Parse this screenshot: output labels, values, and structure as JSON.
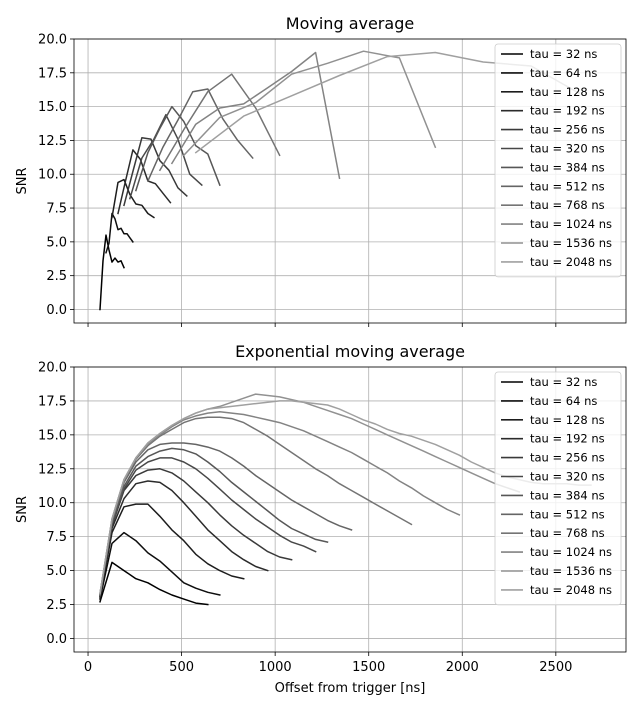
{
  "chart_data": [
    {
      "type": "line",
      "title": "Moving average",
      "xlabel": "",
      "ylabel": "SNR",
      "xlim": [
        -75,
        2875
      ],
      "ylim": [
        -1,
        20
      ],
      "xticks": [
        0,
        500,
        1000,
        1500,
        2000,
        2500
      ],
      "yticks": [
        0.0,
        2.5,
        5.0,
        7.5,
        10.0,
        12.5,
        15.0,
        17.5,
        20.0
      ],
      "ytick_labels": [
        "0.0",
        "2.5",
        "5.0",
        "7.5",
        "10.0",
        "12.5",
        "15.0",
        "17.5",
        "20.0"
      ],
      "show_xtick_labels": false,
      "grid": true,
      "legend_position": "upper right",
      "series": [
        {
          "name": "tau = 32 ns",
          "color": "#000000",
          "x": [
            64,
            80,
            96,
            112,
            128,
            144,
            160,
            176,
            192
          ],
          "y": [
            0.0,
            3.6,
            5.5,
            4.4,
            3.5,
            3.8,
            3.5,
            3.6,
            3.1
          ]
        },
        {
          "name": "tau = 64 ns",
          "color": "#0e0e0e",
          "x": [
            96,
            112,
            128,
            144,
            160,
            176,
            192,
            208,
            224,
            240
          ],
          "y": [
            4.2,
            4.9,
            7.1,
            6.7,
            5.9,
            6.0,
            5.6,
            5.6,
            5.3,
            5.0
          ]
        },
        {
          "name": "tau = 128 ns",
          "color": "#1d1d1d",
          "x": [
            128,
            160,
            192,
            224,
            256,
            288,
            320,
            352
          ],
          "y": [
            6.8,
            9.4,
            9.6,
            8.5,
            7.8,
            7.7,
            7.1,
            6.8
          ]
        },
        {
          "name": "tau = 192 ns",
          "color": "#2b2b2b",
          "x": [
            160,
            200,
            240,
            280,
            320,
            360,
            400,
            440
          ],
          "y": [
            7.1,
            9.5,
            11.8,
            11.1,
            9.5,
            9.3,
            8.6,
            7.9
          ]
        },
        {
          "name": "tau = 256 ns",
          "color": "#3a3a3a",
          "x": [
            192,
            240,
            288,
            336,
            384,
            432,
            480,
            528
          ],
          "y": [
            7.7,
            10.2,
            12.7,
            12.6,
            11.0,
            10.3,
            9.0,
            8.4
          ]
        },
        {
          "name": "tau = 320 ns",
          "color": "#484848",
          "x": [
            224,
            288,
            352,
            416,
            480,
            544,
            608
          ],
          "y": [
            8.2,
            11.2,
            12.6,
            14.4,
            12.6,
            10.0,
            9.2
          ]
        },
        {
          "name": "tau = 384 ns",
          "color": "#575757",
          "x": [
            256,
            320,
            384,
            448,
            512,
            576,
            640,
            704
          ],
          "y": [
            8.8,
            11.6,
            13.4,
            15.0,
            13.9,
            12.1,
            11.5,
            9.2
          ]
        },
        {
          "name": "tau = 512 ns",
          "color": "#656565",
          "x": [
            320,
            400,
            480,
            560,
            640,
            720,
            800,
            880
          ],
          "y": [
            9.5,
            12.0,
            14.0,
            16.1,
            16.3,
            14.1,
            12.5,
            11.2
          ]
        },
        {
          "name": "tau = 768 ns",
          "color": "#747474",
          "x": [
            384,
            512,
            640,
            768,
            896,
            1024
          ],
          "y": [
            10.3,
            13.3,
            16.1,
            17.4,
            14.9,
            11.4
          ]
        },
        {
          "name": "tau = 1024 ns",
          "color": "#838383",
          "x": [
            448,
            576,
            704,
            832,
            960,
            1088,
            1216,
            1344
          ],
          "y": [
            10.8,
            13.7,
            14.9,
            15.2,
            16.4,
            17.6,
            19.0,
            9.7
          ]
        },
        {
          "name": "tau = 1536 ns",
          "color": "#919191",
          "x": [
            512,
            704,
            896,
            1088,
            1280,
            1472,
            1664,
            1856
          ],
          "y": [
            11.4,
            14.2,
            15.3,
            17.4,
            18.2,
            19.1,
            18.6,
            12.0
          ]
        },
        {
          "name": "tau = 2048 ns",
          "color": "#a0a0a0",
          "x": [
            576,
            832,
            1088,
            1344,
            1600,
            1856,
            2112,
            2368,
            2624
          ],
          "y": [
            11.6,
            14.3,
            15.8,
            17.3,
            18.7,
            19.0,
            18.3,
            18.0,
            16.0
          ]
        }
      ]
    },
    {
      "type": "line",
      "title": "Exponential moving average",
      "xlabel": "Offset from trigger [ns]",
      "ylabel": "SNR",
      "xlim": [
        -75,
        2875
      ],
      "ylim": [
        -1,
        20
      ],
      "xticks": [
        0,
        500,
        1000,
        1500,
        2000,
        2500
      ],
      "yticks": [
        0.0,
        2.5,
        5.0,
        7.5,
        10.0,
        12.5,
        15.0,
        17.5,
        20.0
      ],
      "ytick_labels": [
        "0.0",
        "2.5",
        "5.0",
        "7.5",
        "10.0",
        "12.5",
        "15.0",
        "17.5",
        "20.0"
      ],
      "show_xtick_labels": true,
      "grid": true,
      "legend_position": "upper right",
      "series": [
        {
          "name": "tau = 32 ns",
          "color": "#000000",
          "x": [
            64,
            128,
            192,
            256,
            320,
            384,
            448,
            512,
            576,
            640
          ],
          "y": [
            2.7,
            5.6,
            5.0,
            4.4,
            4.1,
            3.6,
            3.2,
            2.9,
            2.6,
            2.5
          ]
        },
        {
          "name": "tau = 64 ns",
          "color": "#0e0e0e",
          "x": [
            64,
            128,
            192,
            256,
            320,
            384,
            448,
            512,
            576,
            640,
            704
          ],
          "y": [
            2.9,
            7.0,
            7.8,
            7.2,
            6.3,
            5.7,
            4.9,
            4.1,
            3.7,
            3.4,
            3.2
          ]
        },
        {
          "name": "tau = 128 ns",
          "color": "#1d1d1d",
          "x": [
            64,
            128,
            192,
            256,
            320,
            384,
            448,
            512,
            576,
            640,
            704,
            768,
            832
          ],
          "y": [
            3.0,
            7.8,
            9.7,
            9.9,
            9.9,
            9.0,
            8.0,
            7.2,
            6.2,
            5.5,
            5.0,
            4.6,
            4.4
          ]
        },
        {
          "name": "tau = 192 ns",
          "color": "#2b2b2b",
          "x": [
            64,
            128,
            192,
            256,
            320,
            384,
            448,
            512,
            576,
            640,
            704,
            768,
            832,
            896,
            960
          ],
          "y": [
            3.1,
            8.1,
            10.3,
            11.4,
            11.6,
            11.5,
            10.9,
            10.0,
            9.0,
            8.0,
            7.2,
            6.4,
            5.8,
            5.3,
            5.0
          ]
        },
        {
          "name": "tau = 256 ns",
          "color": "#3a3a3a",
          "x": [
            64,
            128,
            192,
            256,
            320,
            384,
            448,
            512,
            576,
            640,
            704,
            768,
            832,
            896,
            960,
            1024,
            1088
          ],
          "y": [
            3.1,
            8.3,
            10.9,
            12.0,
            12.4,
            12.5,
            12.2,
            11.6,
            10.8,
            10.0,
            9.1,
            8.3,
            7.6,
            7.0,
            6.4,
            6.0,
            5.8
          ]
        },
        {
          "name": "tau = 320 ns",
          "color": "#484848",
          "x": [
            64,
            128,
            192,
            256,
            320,
            384,
            448,
            512,
            576,
            640,
            704,
            768,
            832,
            896,
            960,
            1024,
            1088,
            1152,
            1216
          ],
          "y": [
            3.2,
            8.4,
            11.0,
            12.4,
            13.0,
            13.3,
            13.3,
            13.0,
            12.5,
            11.8,
            11.0,
            10.2,
            9.5,
            8.8,
            8.2,
            7.6,
            7.1,
            6.8,
            6.4
          ]
        },
        {
          "name": "tau = 384 ns",
          "color": "#575757",
          "x": [
            64,
            128,
            192,
            256,
            320,
            384,
            448,
            512,
            576,
            640,
            704,
            768,
            832,
            896,
            960,
            1024,
            1088,
            1152,
            1216,
            1280
          ],
          "y": [
            3.2,
            8.5,
            11.2,
            12.7,
            13.4,
            13.8,
            14.0,
            13.9,
            13.6,
            13.0,
            12.3,
            11.5,
            10.8,
            10.1,
            9.4,
            8.7,
            8.1,
            7.7,
            7.3,
            7.1
          ]
        },
        {
          "name": "tau = 512 ns",
          "color": "#656565",
          "x": [
            64,
            128,
            192,
            256,
            320,
            384,
            448,
            512,
            576,
            640,
            704,
            768,
            832,
            896,
            960,
            1024,
            1088,
            1152,
            1216,
            1280,
            1344,
            1408
          ],
          "y": [
            3.2,
            8.6,
            11.5,
            13.0,
            13.9,
            14.3,
            14.4,
            14.4,
            14.3,
            14.1,
            13.8,
            13.3,
            12.7,
            12.0,
            11.4,
            10.8,
            10.2,
            9.7,
            9.2,
            8.7,
            8.3,
            8.0
          ]
        },
        {
          "name": "tau = 768 ns",
          "color": "#747474",
          "x": [
            64,
            128,
            192,
            256,
            320,
            384,
            448,
            512,
            576,
            640,
            704,
            768,
            832,
            896,
            960,
            1024,
            1088,
            1152,
            1216,
            1280,
            1344,
            1408,
            1472,
            1536,
            1600,
            1664,
            1728
          ],
          "y": [
            3.3,
            8.7,
            11.6,
            13.2,
            14.2,
            14.9,
            15.4,
            15.9,
            16.2,
            16.3,
            16.3,
            16.2,
            15.9,
            15.4,
            14.9,
            14.3,
            13.7,
            13.1,
            12.5,
            12.0,
            11.4,
            10.9,
            10.4,
            9.9,
            9.4,
            8.9,
            8.4
          ]
        },
        {
          "name": "tau = 1024 ns",
          "color": "#838383",
          "x": [
            64,
            128,
            192,
            256,
            320,
            384,
            448,
            512,
            576,
            640,
            704,
            768,
            832,
            896,
            960,
            1024,
            1088,
            1152,
            1216,
            1280,
            1344,
            1408,
            1472,
            1536,
            1600,
            1664,
            1728,
            1792,
            1856,
            1920,
            1984
          ],
          "y": [
            3.3,
            8.8,
            11.7,
            13.3,
            14.3,
            15.0,
            15.6,
            16.1,
            16.4,
            16.6,
            16.7,
            16.6,
            16.5,
            16.3,
            16.1,
            15.9,
            15.6,
            15.3,
            14.9,
            14.5,
            14.1,
            13.7,
            13.2,
            12.7,
            12.2,
            11.6,
            11.1,
            10.5,
            10.0,
            9.5,
            9.1
          ]
        },
        {
          "name": "tau = 1536 ns",
          "color": "#919191",
          "x": [
            64,
            128,
            192,
            256,
            320,
            384,
            448,
            512,
            576,
            640,
            704,
            768,
            832,
            896,
            960,
            1024,
            1088,
            1152,
            1216,
            1280,
            1344,
            1408,
            1472,
            1536,
            1600,
            1664,
            1728,
            1792,
            1856,
            1920,
            1984,
            2048,
            2112,
            2176,
            2240,
            2304
          ],
          "y": [
            3.3,
            8.8,
            11.7,
            13.3,
            14.4,
            15.1,
            15.7,
            16.2,
            16.6,
            16.9,
            17.1,
            17.4,
            17.7,
            18.0,
            17.9,
            17.8,
            17.6,
            17.4,
            17.1,
            16.8,
            16.5,
            16.2,
            15.8,
            15.4,
            15.0,
            14.6,
            14.2,
            13.8,
            13.4,
            13.0,
            12.6,
            12.2,
            11.8,
            11.4,
            11.1,
            10.8
          ]
        },
        {
          "name": "tau = 2048 ns",
          "color": "#a0a0a0",
          "x": [
            64,
            128,
            192,
            256,
            320,
            384,
            448,
            512,
            576,
            640,
            704,
            768,
            832,
            896,
            960,
            1024,
            1088,
            1152,
            1216,
            1280,
            1344,
            1408,
            1472,
            1536,
            1600,
            1664,
            1728,
            1792,
            1856,
            1920,
            1984,
            2048,
            2112,
            2176,
            2240,
            2304,
            2368,
            2432,
            2496,
            2560,
            2624,
            2688
          ],
          "y": [
            3.3,
            8.8,
            11.7,
            13.3,
            14.4,
            15.1,
            15.7,
            16.2,
            16.6,
            16.9,
            17.0,
            17.1,
            17.2,
            17.3,
            17.4,
            17.5,
            17.5,
            17.4,
            17.3,
            17.2,
            16.9,
            16.5,
            16.1,
            15.8,
            15.4,
            15.1,
            14.9,
            14.6,
            14.3,
            13.9,
            13.5,
            13.0,
            12.6,
            12.2,
            11.9,
            11.7,
            11.5,
            11.4,
            11.4,
            11.4,
            11.3,
            11.3
          ]
        }
      ]
    }
  ]
}
